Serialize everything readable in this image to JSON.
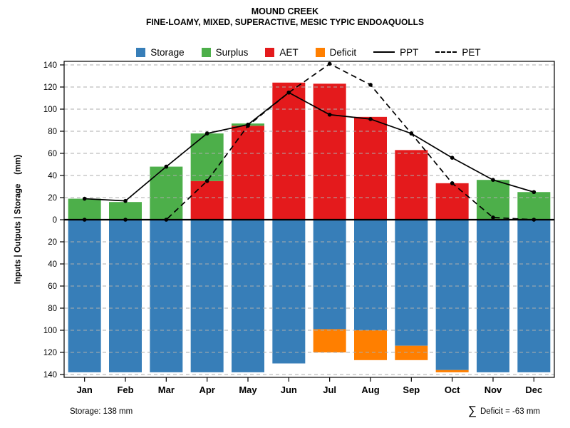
{
  "legend": [
    {
      "label": "Storage",
      "swatch": "#377EB8"
    },
    {
      "label": "Surplus",
      "swatch": "#4DAF4A"
    },
    {
      "label": "AET",
      "swatch": "#E41A1C"
    },
    {
      "label": "Deficit",
      "swatch": "#FF7F00"
    },
    {
      "label": "PPT",
      "line": "solid"
    },
    {
      "label": "PET",
      "line": "dashed"
    }
  ],
  "chart_data": {
    "type": "bar",
    "title": "MOUND CREEK",
    "subtitle": "FINE-LOAMY, MIXED, SUPERACTIVE, MESIC TYPIC ENDOAQUOLLS",
    "ylabel": "Inputs | Outputs | Storage    (mm)",
    "xlabel": "",
    "ylim": [
      -140,
      140
    ],
    "ytick_step": 20,
    "ytick_labels_absolute": true,
    "grid": "horizontal-dashed",
    "legend_position": "top",
    "categories": [
      "Jan",
      "Feb",
      "Mar",
      "Apr",
      "May",
      "Jun",
      "Jul",
      "Aug",
      "Sep",
      "Oct",
      "Nov",
      "Dec"
    ],
    "bar_series": [
      {
        "name": "AET",
        "color": "#E41A1C",
        "stack": "up",
        "values": [
          0,
          0,
          0,
          35,
          85,
          124,
          123,
          93,
          63,
          33,
          0,
          0
        ]
      },
      {
        "name": "Surplus",
        "color": "#4DAF4A",
        "stack": "up",
        "values": [
          19,
          16,
          48,
          43,
          2,
          0,
          0,
          0,
          0,
          0,
          36,
          25
        ]
      },
      {
        "name": "Storage",
        "color": "#377EB8",
        "stack": "down",
        "values": [
          138,
          138,
          138,
          138,
          138,
          130,
          99,
          100,
          114,
          136,
          138,
          138
        ]
      },
      {
        "name": "Deficit",
        "color": "#FF7F00",
        "stack": "down",
        "values": [
          0,
          0,
          0,
          0,
          0,
          0,
          21,
          27,
          13,
          2,
          0,
          0
        ]
      }
    ],
    "line_series": [
      {
        "name": "PPT",
        "color": "#000000",
        "dash": "solid",
        "marker": "point",
        "values": [
          19,
          17,
          48,
          78,
          86,
          115,
          95,
          91,
          78,
          56,
          36,
          25
        ]
      },
      {
        "name": "PET",
        "color": "#000000",
        "dash": "dashed",
        "marker": "point",
        "values": [
          0,
          0,
          0,
          35,
          85,
          115,
          141,
          122,
          78,
          33,
          2,
          0
        ]
      }
    ],
    "annotations": {
      "storage_note": "Storage: 138 mm",
      "deficit_sigma": "∑",
      "deficit_note": "Deficit = -63 mm"
    }
  }
}
